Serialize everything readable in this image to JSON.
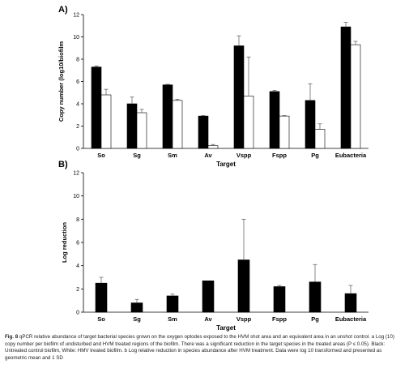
{
  "panel_a_label": "A)",
  "panel_b_label": "B)",
  "caption": {
    "fig_label": "Fig. 8",
    "text": " qPCR relative abundance of target bacterial species grown on the oxygen optodes exposed to the HVM shot area and an equivalent area in an unshot control. a Log (10) copy number per biofilm of undisturbed and HVM treated regions of the biofilm. There was a significant reduction in the target species in the treated areas (P ≤ 0.05). Black: Untreated control biofilm, White: HMV treated biofilm. b Log relative reduction in species abundance after HVM treatment. Data were log 10 transformed and presented as geometric mean and 1 SD"
  },
  "colors": {
    "untreated": "#000000",
    "treated": "#ffffff",
    "axis": "#000000"
  },
  "chart_data": [
    {
      "type": "bar",
      "panel": "A)",
      "xlabel": "Target",
      "ylabel": "Copy number (log10/biofilm",
      "ylim": [
        0,
        12
      ],
      "yticks": [
        0,
        2,
        4,
        6,
        8,
        10,
        12
      ],
      "grid": false,
      "legend": "none",
      "categories": [
        "So",
        "Sg",
        "Sm",
        "Av",
        "Vspp",
        "Fspp",
        "Pg",
        "Eubacteria"
      ],
      "series": [
        {
          "key": "untreated",
          "values": [
            7.3,
            4.0,
            5.7,
            2.9,
            9.2,
            5.1,
            4.3,
            10.9
          ],
          "errors": [
            0.1,
            0.6,
            0.05,
            0.05,
            0.9,
            0.1,
            1.5,
            0.4
          ]
        },
        {
          "key": "treated",
          "values": [
            4.8,
            3.2,
            4.3,
            0.25,
            4.7,
            2.9,
            1.7,
            9.3
          ],
          "errors": [
            0.5,
            0.3,
            0.1,
            0.1,
            3.5,
            0.05,
            0.5,
            0.3
          ]
        }
      ]
    },
    {
      "type": "bar",
      "panel": "B)",
      "xlabel": "Target",
      "ylabel": "Log reduction",
      "ylim": [
        0,
        12
      ],
      "yticks": [
        0,
        2,
        4,
        6,
        8,
        10,
        12
      ],
      "grid": false,
      "legend": "none",
      "categories": [
        "So",
        "Sg",
        "Sm",
        "Av",
        "Vspp",
        "Fspp",
        "Pg",
        "Eubacteria"
      ],
      "series": [
        {
          "key": "reduction",
          "values": [
            2.5,
            0.8,
            1.4,
            2.7,
            4.5,
            2.2,
            2.6,
            1.6
          ],
          "errors": [
            0.5,
            0.3,
            0.15,
            0.0,
            3.5,
            0.1,
            1.5,
            0.7
          ]
        }
      ]
    }
  ]
}
